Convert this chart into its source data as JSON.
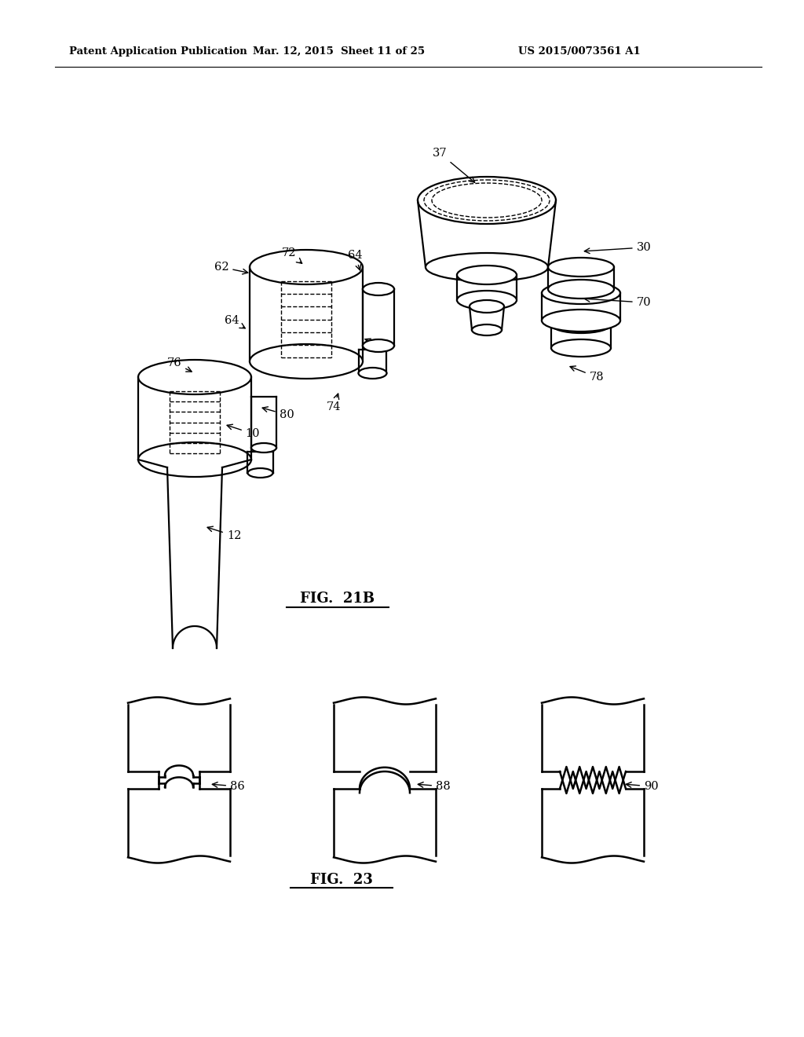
{
  "bg_color": "#ffffff",
  "header_left": "Patent Application Publication",
  "header_mid": "Mar. 12, 2015  Sheet 11 of 25",
  "header_right": "US 2015/0073561 A1",
  "fig21b_label": "FIG.  21B",
  "fig23_label": "FIG.  23",
  "lw": 1.6,
  "lw_thin": 1.0,
  "lw_thick": 1.8
}
